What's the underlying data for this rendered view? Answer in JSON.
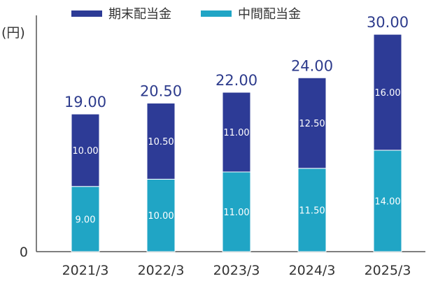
{
  "chart_data": {
    "type": "bar",
    "stacked": true,
    "unit_label": "(円)",
    "categories": [
      "2021/3",
      "2022/3",
      "2023/3",
      "2024/3",
      "2025/3"
    ],
    "series": [
      {
        "name": "中間配当金",
        "color": "#20a5c5",
        "values": [
          9.0,
          10.0,
          11.0,
          11.5,
          14.0
        ],
        "labels": [
          "9.00",
          "10.00",
          "11.00",
          "11.50",
          "14.00"
        ]
      },
      {
        "name": "期末配当金",
        "color": "#2d3b96",
        "values": [
          10.0,
          10.5,
          11.0,
          12.5,
          16.0
        ],
        "labels": [
          "10.00",
          "10.50",
          "11.00",
          "12.50",
          "16.00"
        ]
      }
    ],
    "totals": [
      "19.00",
      "20.50",
      "22.00",
      "24.00",
      "30.00"
    ],
    "total_values": [
      19.0,
      20.5,
      22.0,
      24.0,
      30.0
    ],
    "y_tick_labels": [
      "0"
    ],
    "ylim": [
      0,
      33
    ],
    "legend_position": "top",
    "grid": false
  }
}
